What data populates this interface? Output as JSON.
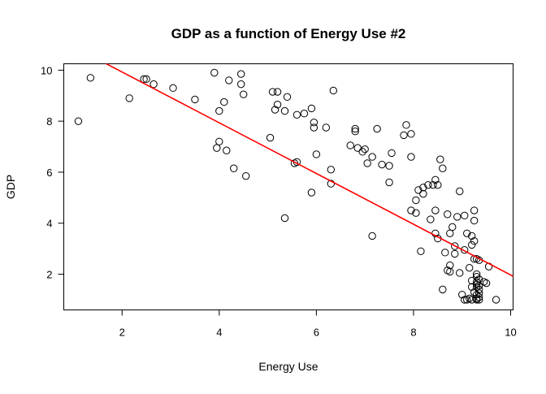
{
  "chart_data": {
    "type": "scatter",
    "title": "GDP as a function of Energy Use #2",
    "xlabel": "Energy Use",
    "ylabel": "GDP",
    "xlim": [
      0.8,
      10.05
    ],
    "ylim": [
      0.6,
      10.25
    ],
    "xticks": [
      2,
      4,
      6,
      8,
      10
    ],
    "yticks": [
      2,
      4,
      6,
      8,
      10
    ],
    "grid": false,
    "marker": "open-circle",
    "regression_line": {
      "x": [
        0.8,
        10.05
      ],
      "y": [
        11.12,
        1.92
      ],
      "color": "#ff0000"
    },
    "points": [
      [
        1.1,
        8.0
      ],
      [
        1.35,
        9.7
      ],
      [
        2.15,
        8.9
      ],
      [
        2.45,
        9.65
      ],
      [
        2.5,
        9.65
      ],
      [
        2.65,
        9.45
      ],
      [
        3.05,
        9.3
      ],
      [
        3.5,
        8.85
      ],
      [
        3.9,
        9.9
      ],
      [
        4.2,
        9.6
      ],
      [
        4.45,
        9.85
      ],
      [
        4.45,
        9.45
      ],
      [
        4.5,
        9.05
      ],
      [
        4.1,
        8.75
      ],
      [
        4.0,
        8.4
      ],
      [
        4.0,
        7.2
      ],
      [
        3.95,
        6.95
      ],
      [
        4.15,
        6.85
      ],
      [
        4.3,
        6.15
      ],
      [
        4.55,
        5.85
      ],
      [
        5.1,
        9.15
      ],
      [
        5.2,
        9.15
      ],
      [
        5.4,
        8.95
      ],
      [
        5.2,
        8.65
      ],
      [
        5.15,
        8.45
      ],
      [
        5.35,
        8.4
      ],
      [
        5.6,
        8.25
      ],
      [
        5.75,
        8.3
      ],
      [
        5.9,
        8.5
      ],
      [
        5.95,
        7.95
      ],
      [
        5.95,
        7.75
      ],
      [
        5.05,
        7.35
      ],
      [
        6.2,
        7.75
      ],
      [
        6.35,
        9.2
      ],
      [
        6.0,
        6.7
      ],
      [
        5.55,
        6.35
      ],
      [
        5.6,
        6.4
      ],
      [
        5.35,
        4.2
      ],
      [
        5.9,
        5.2
      ],
      [
        6.3,
        6.1
      ],
      [
        6.3,
        5.55
      ],
      [
        6.7,
        7.05
      ],
      [
        6.8,
        7.7
      ],
      [
        6.8,
        7.6
      ],
      [
        6.85,
        6.95
      ],
      [
        6.95,
        6.8
      ],
      [
        7.0,
        6.9
      ],
      [
        7.25,
        7.7
      ],
      [
        7.15,
        6.6
      ],
      [
        7.05,
        6.35
      ],
      [
        7.35,
        6.3
      ],
      [
        7.5,
        6.25
      ],
      [
        7.55,
        6.75
      ],
      [
        7.5,
        5.6
      ],
      [
        7.8,
        7.45
      ],
      [
        7.85,
        7.85
      ],
      [
        7.95,
        7.5
      ],
      [
        7.95,
        6.6
      ],
      [
        7.15,
        3.5
      ],
      [
        7.95,
        4.5
      ],
      [
        8.05,
        4.4
      ],
      [
        8.05,
        4.9
      ],
      [
        8.1,
        5.3
      ],
      [
        8.2,
        5.4
      ],
      [
        8.2,
        5.15
      ],
      [
        8.3,
        5.5
      ],
      [
        8.4,
        5.5
      ],
      [
        8.45,
        5.7
      ],
      [
        8.5,
        5.5
      ],
      [
        8.55,
        6.5
      ],
      [
        8.6,
        6.15
      ],
      [
        8.35,
        4.15
      ],
      [
        8.45,
        4.5
      ],
      [
        8.45,
        3.6
      ],
      [
        8.5,
        3.4
      ],
      [
        8.15,
        2.9
      ],
      [
        8.6,
        1.4
      ],
      [
        8.7,
        4.35
      ],
      [
        8.75,
        3.6
      ],
      [
        8.8,
        3.85
      ],
      [
        8.85,
        3.1
      ],
      [
        8.9,
        4.25
      ],
      [
        8.65,
        2.85
      ],
      [
        8.75,
        2.35
      ],
      [
        8.7,
        2.15
      ],
      [
        8.75,
        2.1
      ],
      [
        8.85,
        2.8
      ],
      [
        8.95,
        2.05
      ],
      [
        8.95,
        5.25
      ],
      [
        9.0,
        1.2
      ],
      [
        9.05,
        2.95
      ],
      [
        9.05,
        4.3
      ],
      [
        9.1,
        3.6
      ],
      [
        9.05,
        1.0
      ],
      [
        9.1,
        1.0
      ],
      [
        9.15,
        1.05
      ],
      [
        9.2,
        1.0
      ],
      [
        9.15,
        2.25
      ],
      [
        9.2,
        1.5
      ],
      [
        9.2,
        1.75
      ],
      [
        9.25,
        1.3
      ],
      [
        9.2,
        3.5
      ],
      [
        9.2,
        3.15
      ],
      [
        9.25,
        3.3
      ],
      [
        9.25,
        4.1
      ],
      [
        9.25,
        4.5
      ],
      [
        9.25,
        2.6
      ],
      [
        9.3,
        2.6
      ],
      [
        9.3,
        1.5
      ],
      [
        9.3,
        1.6
      ],
      [
        9.3,
        1.7
      ],
      [
        9.3,
        1.9
      ],
      [
        9.3,
        2.0
      ],
      [
        9.3,
        1.2
      ],
      [
        9.3,
        1.05
      ],
      [
        9.3,
        1.0
      ],
      [
        9.35,
        1.0
      ],
      [
        9.35,
        1.1
      ],
      [
        9.35,
        1.25
      ],
      [
        9.35,
        1.4
      ],
      [
        9.35,
        1.55
      ],
      [
        9.35,
        1.8
      ],
      [
        9.35,
        2.55
      ],
      [
        9.45,
        1.7
      ],
      [
        9.5,
        1.65
      ],
      [
        9.55,
        2.3
      ],
      [
        9.7,
        1.0
      ]
    ],
    "colors": {
      "points": "#000000",
      "line": "#ff0000",
      "axes": "#000000"
    }
  }
}
